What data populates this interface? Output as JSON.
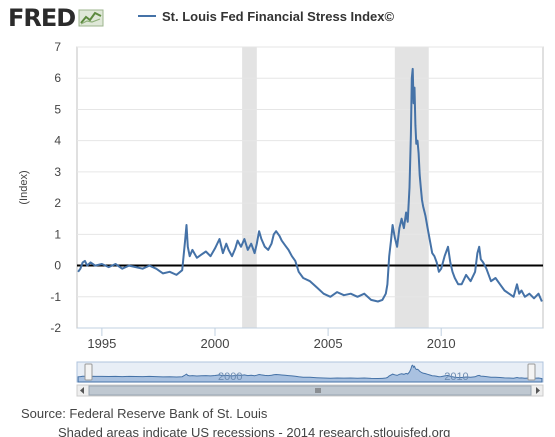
{
  "header": {
    "brand": "FRED",
    "brand_icon": "fred-graph-icon"
  },
  "legend": {
    "label": "St. Louis Fed Financial Stress Index©",
    "color": "#4572a7"
  },
  "footer": {
    "source": "Source: Federal Reserve Bank of St. Louis",
    "note": "Shaded areas indicate US recessions - 2014 research.stlouisfed.org"
  },
  "navigator": {
    "labels": [
      "2000",
      "2010"
    ],
    "scroll_icon": "scrollbar-grip-icon",
    "left_arrow_icon": "scroll-left-icon",
    "right_arrow_icon": "scroll-right-icon"
  },
  "chart_data": {
    "type": "line",
    "title": "",
    "xlabel": "",
    "ylabel": "(Index)",
    "xlim": [
      1993.9,
      2014.5
    ],
    "ylim": [
      -2,
      7
    ],
    "x_ticks": [
      "1995",
      "2000",
      "2005",
      "2010"
    ],
    "y_ticks": [
      "7",
      "6",
      "5",
      "4",
      "3",
      "2",
      "1",
      "0",
      "-1",
      "-2"
    ],
    "grid": true,
    "line_color": "#4572a7",
    "zero_line_color": "#000000",
    "recession_color": "#e3e3e3",
    "recessions": [
      {
        "start": 2001.2,
        "end": 2001.85
      },
      {
        "start": 2007.95,
        "end": 2009.45
      }
    ],
    "series": [
      {
        "name": "St. Louis Fed Financial Stress Index©",
        "x": [
          1993.95,
          1994.05,
          1994.15,
          1994.25,
          1994.35,
          1994.5,
          1994.7,
          1995.0,
          1995.3,
          1995.6,
          1995.9,
          1996.2,
          1996.5,
          1996.8,
          1997.1,
          1997.4,
          1997.7,
          1998.0,
          1998.3,
          1998.55,
          1998.68,
          1998.74,
          1998.8,
          1998.88,
          1999.0,
          1999.2,
          1999.4,
          1999.6,
          1999.8,
          2000.0,
          2000.2,
          2000.35,
          2000.5,
          2000.6,
          2000.75,
          2000.9,
          2001.0,
          2001.15,
          2001.3,
          2001.45,
          2001.6,
          2001.75,
          2001.85,
          2001.95,
          2002.05,
          2002.2,
          2002.35,
          2002.5,
          2002.6,
          2002.7,
          2002.85,
          2002.95,
          2003.1,
          2003.25,
          2003.4,
          2003.55,
          2003.7,
          2003.9,
          2004.2,
          2004.5,
          2004.8,
          2005.1,
          2005.4,
          2005.7,
          2006.0,
          2006.3,
          2006.6,
          2006.9,
          2007.2,
          2007.4,
          2007.55,
          2007.62,
          2007.7,
          2007.78,
          2007.85,
          2007.95,
          2008.05,
          2008.15,
          2008.25,
          2008.35,
          2008.45,
          2008.52,
          2008.6,
          2008.66,
          2008.7,
          2008.74,
          2008.78,
          2008.82,
          2008.86,
          2008.9,
          2008.95,
          2009.0,
          2009.05,
          2009.1,
          2009.15,
          2009.2,
          2009.3,
          2009.4,
          2009.5,
          2009.6,
          2009.7,
          2009.8,
          2009.9,
          2010.0,
          2010.15,
          2010.3,
          2010.4,
          2010.5,
          2010.6,
          2010.75,
          2010.9,
          2011.1,
          2011.3,
          2011.5,
          2011.6,
          2011.68,
          2011.75,
          2011.85,
          2012.0,
          2012.2,
          2012.4,
          2012.6,
          2012.8,
          2013.0,
          2013.2,
          2013.35,
          2013.45,
          2013.55,
          2013.7,
          2013.9,
          2014.1,
          2014.3,
          2014.45
        ],
        "y": [
          -0.2,
          -0.1,
          0.1,
          0.15,
          0.0,
          0.1,
          0.0,
          0.05,
          -0.05,
          0.05,
          -0.1,
          0.0,
          -0.05,
          -0.1,
          0.0,
          -0.1,
          -0.25,
          -0.2,
          -0.3,
          -0.15,
          0.8,
          1.3,
          0.6,
          0.3,
          0.5,
          0.25,
          0.35,
          0.45,
          0.3,
          0.55,
          0.85,
          0.4,
          0.7,
          0.5,
          0.3,
          0.55,
          0.8,
          0.6,
          0.85,
          0.5,
          0.7,
          0.4,
          0.7,
          1.1,
          0.85,
          0.6,
          0.5,
          0.7,
          1.0,
          1.1,
          0.95,
          0.8,
          0.65,
          0.5,
          0.3,
          0.15,
          -0.2,
          -0.4,
          -0.5,
          -0.7,
          -0.9,
          -1.0,
          -0.85,
          -0.95,
          -0.9,
          -1.0,
          -0.9,
          -1.1,
          -1.15,
          -1.1,
          -0.9,
          -0.6,
          0.3,
          0.8,
          1.3,
          0.9,
          0.6,
          1.2,
          1.5,
          1.2,
          1.7,
          1.4,
          2.5,
          4.2,
          6.0,
          6.3,
          5.2,
          5.7,
          4.5,
          3.9,
          4.0,
          3.6,
          2.9,
          2.5,
          2.1,
          1.9,
          1.6,
          1.2,
          0.8,
          0.4,
          0.3,
          0.1,
          -0.2,
          -0.1,
          0.3,
          0.6,
          0.1,
          -0.2,
          -0.4,
          -0.6,
          -0.6,
          -0.3,
          -0.5,
          -0.2,
          0.4,
          0.6,
          0.2,
          0.1,
          -0.1,
          -0.5,
          -0.4,
          -0.6,
          -0.8,
          -0.9,
          -1.0,
          -0.6,
          -0.9,
          -0.8,
          -1.0,
          -0.9,
          -1.05,
          -0.9,
          -1.15
        ]
      }
    ]
  }
}
